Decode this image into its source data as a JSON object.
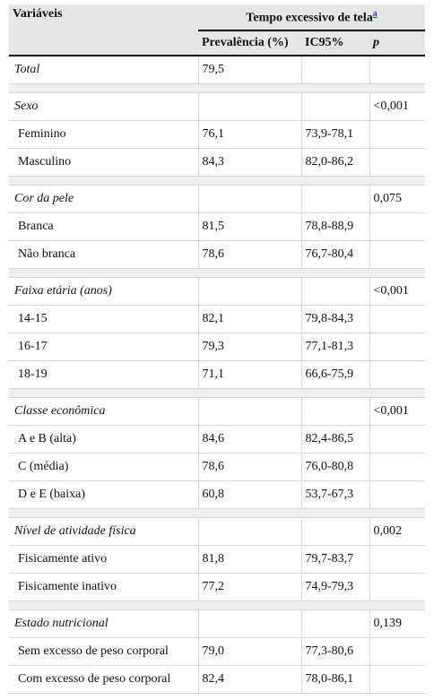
{
  "table": {
    "header": {
      "variaveis": "Variáveis",
      "group_title": "Tempo excessivo de tela",
      "group_note": "a",
      "col_prevalencia": "Prevalência (%)",
      "col_ic": "IC95%",
      "col_p": "p"
    },
    "rows": [
      {
        "type": "cat",
        "label": "Total",
        "prev": "79,5",
        "ic": "",
        "p": ""
      },
      {
        "type": "spacer"
      },
      {
        "type": "cat",
        "label": "Sexo",
        "prev": "",
        "ic": "",
        "p": "<0,001"
      },
      {
        "type": "sub",
        "label": "Feminino",
        "prev": "76,1",
        "ic": "73,9-78,1",
        "p": ""
      },
      {
        "type": "sub",
        "label": "Masculino",
        "prev": "84,3",
        "ic": "82,0-86,2",
        "p": ""
      },
      {
        "type": "spacer"
      },
      {
        "type": "cat",
        "label": "Cor da pele",
        "prev": "",
        "ic": "",
        "p": "0,075"
      },
      {
        "type": "sub",
        "label": "Branca",
        "prev": "81,5",
        "ic": "78,8-88,9",
        "p": ""
      },
      {
        "type": "sub",
        "label": "Não branca",
        "prev": "78,6",
        "ic": "76,7-80,4",
        "p": ""
      },
      {
        "type": "spacer"
      },
      {
        "type": "cat",
        "label": "Faixa etária (anos)",
        "prev": "",
        "ic": "",
        "p": "<0,001"
      },
      {
        "type": "sub",
        "label": "14-15",
        "prev": "82,1",
        "ic": "79,8-84,3",
        "p": ""
      },
      {
        "type": "sub",
        "label": "16-17",
        "prev": "79,3",
        "ic": "77,1-81,3",
        "p": ""
      },
      {
        "type": "sub",
        "label": "18-19",
        "prev": "71,1",
        "ic": "66,6-75,9",
        "p": ""
      },
      {
        "type": "spacer"
      },
      {
        "type": "cat",
        "label": "Classe econômica",
        "prev": "",
        "ic": "",
        "p": "<0,001"
      },
      {
        "type": "sub",
        "label": "A e B (alta)",
        "prev": "84,6",
        "ic": "82,4-86,5",
        "p": ""
      },
      {
        "type": "sub",
        "label": "C (média)",
        "prev": "78,6",
        "ic": "76,0-80,8",
        "p": ""
      },
      {
        "type": "sub",
        "label": "D e E (baixa)",
        "prev": "60,8",
        "ic": "53,7-67,3",
        "p": ""
      },
      {
        "type": "spacer"
      },
      {
        "type": "cat",
        "label": "Nível de atividade física",
        "prev": "",
        "ic": "",
        "p": "0,002"
      },
      {
        "type": "sub",
        "label": "Fisicamente ativo",
        "prev": "81,8",
        "ic": "79,7-83,7",
        "p": ""
      },
      {
        "type": "sub",
        "label": "Fisicamente inativo",
        "prev": "77,2",
        "ic": "74,9-79,3",
        "p": ""
      },
      {
        "type": "spacer"
      },
      {
        "type": "cat",
        "label": "Estado nutricional",
        "prev": "",
        "ic": "",
        "p": "0,139"
      },
      {
        "type": "sub",
        "label": "Sem excesso de peso corporal",
        "prev": "79,0",
        "ic": "77,3-80,6",
        "p": ""
      },
      {
        "type": "sub",
        "label": "Com excesso de peso corporal",
        "prev": "82,4",
        "ic": "78,0-86,1",
        "p": ""
      }
    ]
  }
}
